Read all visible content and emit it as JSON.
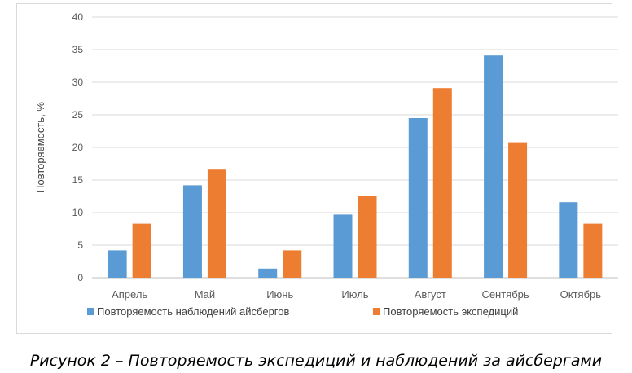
{
  "chart_data": {
    "type": "bar",
    "categories": [
      "Апрель",
      "Май",
      "Июнь",
      "Июль",
      "Август",
      "Сентябрь",
      "Октябрь"
    ],
    "series": [
      {
        "name": "Повторяемость наблюдений айсбергов",
        "color": "#5b9bd5",
        "values": [
          4.2,
          14.2,
          1.4,
          9.7,
          24.5,
          34.1,
          11.6
        ]
      },
      {
        "name": "Повторяемость экспедиций",
        "color": "#ed7d31",
        "values": [
          8.3,
          16.6,
          4.2,
          12.5,
          29.1,
          20.8,
          8.3
        ]
      }
    ],
    "ylabel": "Повторяемость, %",
    "ylim": [
      0,
      40
    ],
    "yticks": [
      0,
      5,
      10,
      15,
      20,
      25,
      30,
      35,
      40
    ],
    "grid": true,
    "legend": "bottom"
  },
  "caption": "Рисунок 2 – Повторяемость экспедиций и наблюдений за айсбергами"
}
